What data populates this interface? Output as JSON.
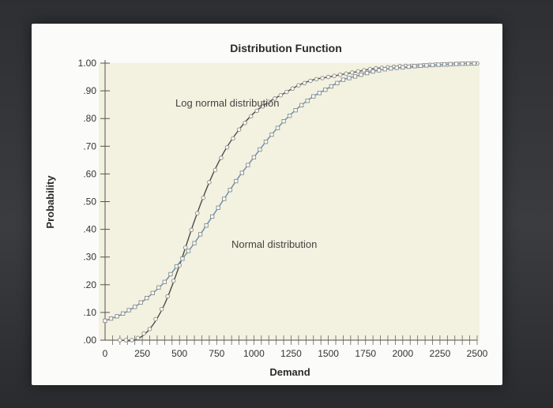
{
  "chart_data": {
    "type": "line",
    "title": "Distribution Function",
    "xlabel": "Demand",
    "ylabel": "Probability",
    "xlim": [
      0,
      2500
    ],
    "ylim": [
      0,
      1
    ],
    "x_ticks": [
      "0",
      "250",
      "500",
      "750",
      "1000",
      "1250",
      "1500",
      "1750",
      "2000",
      "2250",
      "2500"
    ],
    "y_ticks": [
      ".00",
      ".10",
      ".20",
      ".30",
      ".40",
      ".50",
      ".60",
      ".70",
      ".80",
      ".90",
      "1.00"
    ],
    "grid": false,
    "colors": {
      "plot_background": "#f3f1df",
      "lognormal_line": "#4a4a4a",
      "normal_line": "#5a8fc0",
      "marker": "#8a8a8a"
    },
    "series": [
      {
        "name": "Log normal distribution",
        "x": [
          100,
          200,
          300,
          400,
          500,
          600,
          700,
          800,
          900,
          1000,
          1100,
          1200,
          1300,
          1400,
          1500,
          1600,
          1700,
          1800,
          1900,
          2000,
          2100,
          2200,
          2300,
          2400,
          2500
        ],
        "y": [
          0.0,
          0.0,
          0.04,
          0.13,
          0.27,
          0.43,
          0.57,
          0.68,
          0.76,
          0.82,
          0.86,
          0.89,
          0.92,
          0.94,
          0.95,
          0.96,
          0.97,
          0.98,
          0.985,
          0.99,
          0.99,
          0.995,
          0.995,
          0.998,
          0.999
        ]
      },
      {
        "name": "Normal distribution",
        "x": [
          0,
          100,
          200,
          300,
          400,
          500,
          600,
          700,
          800,
          900,
          1000,
          1100,
          1200,
          1300,
          1400,
          1500,
          1600,
          1700,
          1800,
          1900,
          2000,
          2100,
          2200,
          2300,
          2400,
          2500
        ],
        "y": [
          0.07,
          0.09,
          0.12,
          0.16,
          0.21,
          0.28,
          0.35,
          0.43,
          0.51,
          0.59,
          0.66,
          0.73,
          0.79,
          0.84,
          0.88,
          0.91,
          0.94,
          0.955,
          0.97,
          0.98,
          0.985,
          0.99,
          0.993,
          0.996,
          0.998,
          0.999
        ]
      }
    ],
    "annotations": [
      {
        "text": "Log normal distribution",
        "series": 0
      },
      {
        "text": "Normal distribution",
        "series": 1
      }
    ]
  }
}
